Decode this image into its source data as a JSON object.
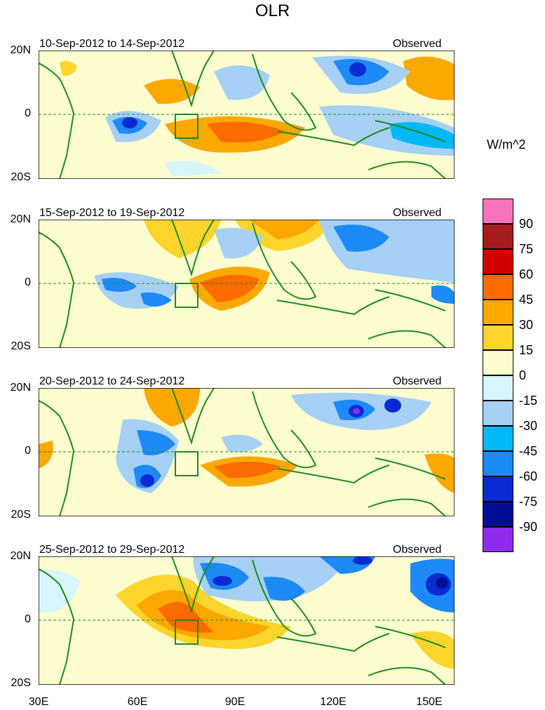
{
  "title": "OLR",
  "units": "W/m^2",
  "panels": [
    {
      "period": "10-Sep-2012 to 14-Sep-2012",
      "tag": "Observed"
    },
    {
      "period": "15-Sep-2012 to 19-Sep-2012",
      "tag": "Observed"
    },
    {
      "period": "20-Sep-2012 to 24-Sep-2012",
      "tag": "Observed"
    },
    {
      "period": "25-Sep-2012 to 29-Sep-2012",
      "tag": "Observed"
    }
  ],
  "lat_labels": {
    "north": "20N",
    "equator": "0",
    "south": "20S"
  },
  "lon_labels": [
    "30E",
    "60E",
    "90E",
    "120E",
    "150E"
  ],
  "colorbar": {
    "labels": [
      "90",
      "75",
      "60",
      "45",
      "30",
      "15",
      "0",
      "-15",
      "-30",
      "-45",
      "-60",
      "-75",
      "-90"
    ],
    "colors": [
      "#f774bd",
      "#a61c1c",
      "#d10000",
      "#fb6b00",
      "#fba800",
      "#fbd52c",
      "#fefdd0",
      "#d7f5fb",
      "#a6d1f4",
      "#00b8f3",
      "#1e8af7",
      "#0a2bd1",
      "#000e96",
      "#8e2cee"
    ]
  },
  "colors": {
    "coast": "#1e8a1e",
    "equator": "#1e8a1e",
    "box": "#1e8a1e"
  }
}
